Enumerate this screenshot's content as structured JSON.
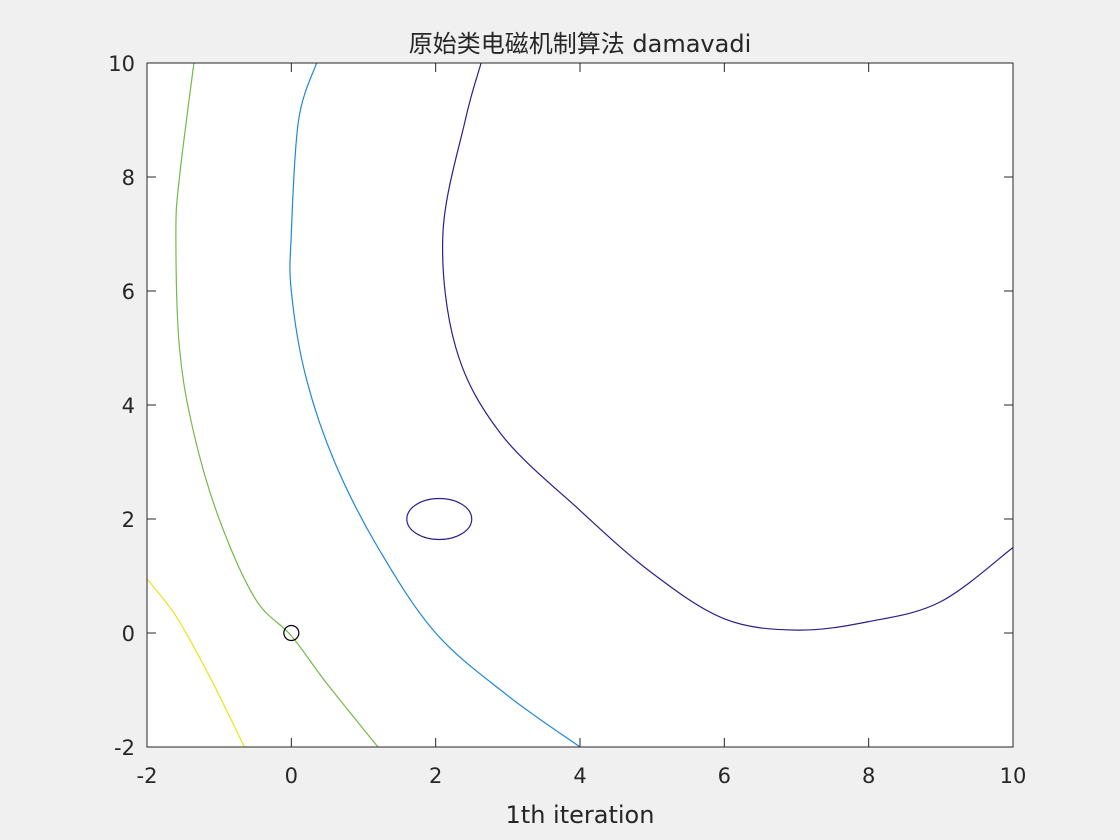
{
  "chart_data": {
    "type": "contour",
    "title": "原始类电磁机制算法 damavadi",
    "xlabel": "1th   iteration",
    "ylabel": "",
    "xlim": [
      -2,
      10
    ],
    "ylim": [
      -2,
      10
    ],
    "xticks": [
      "-2",
      "0",
      "2",
      "4",
      "6",
      "8",
      "10"
    ],
    "yticks": [
      "-2",
      "0",
      "2",
      "4",
      "6",
      "8",
      "10"
    ],
    "grid": false,
    "contour_center": [
      7,
      7
    ],
    "series": [
      {
        "color": "#2c1f8c",
        "points": [
          [
            2.63,
            10.0
          ],
          [
            2.41,
            9.0
          ],
          [
            2.1,
            7.0
          ],
          [
            2.28,
            5.0
          ],
          [
            2.9,
            3.5
          ],
          [
            4.0,
            2.15
          ],
          [
            5.0,
            1.05
          ],
          [
            6.0,
            0.25
          ],
          [
            7.0,
            0.05
          ],
          [
            8.0,
            0.2
          ],
          [
            9.0,
            0.55
          ],
          [
            10.0,
            1.5
          ]
        ]
      },
      {
        "color": "#1e88d8",
        "points": [
          [
            0.35,
            10.0
          ],
          [
            0.1,
            9.0
          ],
          [
            0.0,
            7.0
          ],
          [
            0.0,
            6.0
          ],
          [
            0.2,
            4.5
          ],
          [
            0.6,
            3.0
          ],
          [
            1.2,
            1.5
          ],
          [
            2.0,
            0.0
          ],
          [
            3.0,
            -1.1
          ],
          [
            4.0,
            -2.0
          ]
        ]
      },
      {
        "color": "#74b94a",
        "points": [
          [
            -1.35,
            10.0
          ],
          [
            -1.55,
            8.0
          ],
          [
            -1.6,
            7.0
          ],
          [
            -1.55,
            5.0
          ],
          [
            -1.35,
            3.5
          ],
          [
            -1.0,
            2.0
          ],
          [
            -0.5,
            0.6
          ],
          [
            0.0,
            -0.05
          ],
          [
            0.5,
            -0.9
          ],
          [
            1.2,
            -2.0
          ]
        ]
      },
      {
        "color": "#e8e617",
        "points": [
          [
            -2.0,
            0.95
          ],
          [
            -1.6,
            0.3
          ],
          [
            -1.2,
            -0.6
          ],
          [
            -0.9,
            -1.35
          ],
          [
            -0.65,
            -2.0
          ]
        ]
      },
      {
        "color": "#2c1f8c",
        "ellipse": {
          "cx": 2.05,
          "cy": 2.0,
          "rx": 0.45,
          "ry": 0.36
        }
      }
    ],
    "markers": [
      {
        "x": 0,
        "y": 0,
        "symbol": "o",
        "color": "#000000"
      }
    ]
  }
}
